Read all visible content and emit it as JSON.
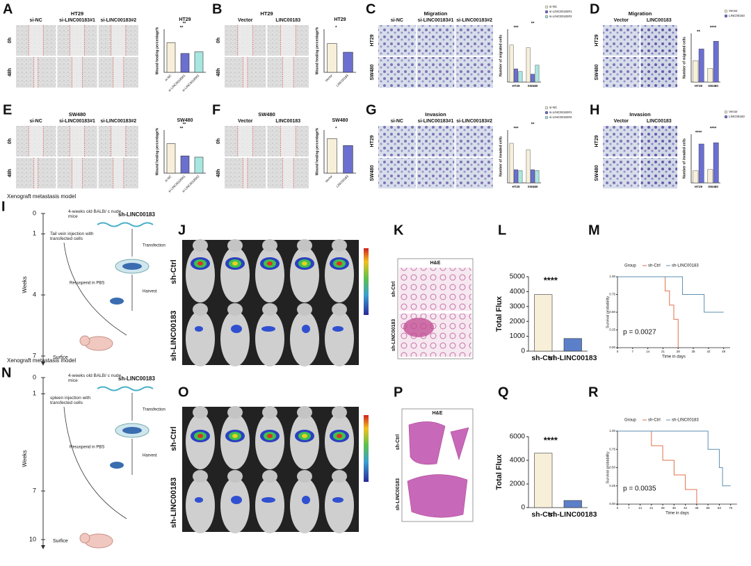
{
  "panel_letters": [
    "A",
    "B",
    "C",
    "D",
    "E",
    "F",
    "G",
    "H",
    "I",
    "J",
    "K",
    "L",
    "M",
    "N",
    "O",
    "P",
    "Q",
    "R"
  ],
  "image_panels": [
    {
      "title": "HT29",
      "columns": [
        "si-NC",
        "si-LINC00183#1",
        "si-LINC00183#2"
      ],
      "rows": [
        "0h",
        "48h"
      ]
    },
    {
      "title": "HT29",
      "columns": [
        "Vector",
        "LINC00183"
      ],
      "rows": [
        "0h",
        "48h"
      ]
    },
    {
      "title": "Migration",
      "columns": [
        "si-NC",
        "si-LINC00183#1",
        "si-LINC00183#2"
      ],
      "rows": [
        "HT29",
        "SW480"
      ]
    },
    {
      "title": "Migration",
      "columns": [
        "Vector",
        "LINC00183"
      ],
      "rows": [
        "HT29",
        "SW480"
      ]
    },
    {
      "title": "SW480",
      "columns": [
        "si-NC",
        "si-LINC00183#1",
        "si-LINC00183#2"
      ],
      "rows": [
        "0h",
        "48h"
      ]
    },
    {
      "title": "SW480",
      "columns": [
        "Vector",
        "LINC00183"
      ],
      "rows": [
        "0h",
        "48h"
      ]
    },
    {
      "title": "Invasion",
      "columns": [
        "si-NC",
        "si-LINC00183#1",
        "si-LINC00183#2"
      ],
      "rows": [
        "HT29",
        "SW480"
      ]
    },
    {
      "title": "Invasion",
      "columns": [
        "Vector",
        "LINC00183"
      ],
      "rows": [
        "HT29",
        "SW480"
      ]
    }
  ],
  "schemes": [
    {
      "title": "Xenograft metastasis model",
      "mice": "4-weeks old BALB/ c nude mice",
      "construct": "sh-LINC00183",
      "injection": "Tail vein injection with transfected cells",
      "transfection": "Transfection",
      "resuspend": "Resuspend in PBS",
      "harvest": "Harvest",
      "axis": "Weeks",
      "ticks": [
        0,
        1,
        4,
        7
      ],
      "end": "Surfice"
    },
    {
      "title": "Xenograft metastasis model",
      "mice": "4-weeks old BALB/ c nude mice",
      "construct": "sh-LINC00183",
      "injection": "spleen injection with transfected cells",
      "transfection": "Transfection",
      "resuspend": "Resuspend in PBS",
      "harvest": "Harvest",
      "axis": "Weeks",
      "ticks": [
        0,
        1,
        7,
        10
      ],
      "end": "Surfice"
    }
  ],
  "imaging_rows": [
    "sh-Ctrl",
    "sh-LINC00183"
  ],
  "histology": [
    {
      "title": "H&E",
      "rows": [
        "sh-Ctrl",
        "sh-LINC00183"
      ]
    },
    {
      "title": "H&E",
      "rows": [
        "sh-Ctrl",
        "sh-LINC00183"
      ]
    }
  ],
  "chart_data": [
    {
      "type": "bar",
      "title": "HT29",
      "ylabel": "Wound healing percentage%",
      "categories": [
        "si-NC",
        "si-LINC00183#1",
        "si-LINC00183#2"
      ],
      "values": [
        55,
        35,
        38
      ],
      "colors": [
        "#f7efd8",
        "#6b6fd0",
        "#a8e6e0"
      ],
      "ylim": [
        0,
        80
      ],
      "annotations": [
        "**",
        "**"
      ]
    },
    {
      "type": "bar",
      "title": "HT29",
      "ylabel": "Wound healing percentage%",
      "categories": [
        "Vector",
        "LINC00183"
      ],
      "values": [
        40,
        28
      ],
      "colors": [
        "#f7efd8",
        "#6b6fd0"
      ],
      "ylim": [
        0,
        60
      ],
      "annotations": [
        "*"
      ]
    },
    {
      "type": "bar",
      "ylabel": "Number of migrated cells",
      "categories": [
        "HT29",
        "SW480"
      ],
      "series": [
        {
          "name": "si-NC",
          "color": "#f7efd8",
          "values": [
            70,
            65
          ]
        },
        {
          "name": "si-LINC00183#1",
          "color": "#6b6fd0",
          "values": [
            25,
            15
          ]
        },
        {
          "name": "si-LINC00183#2",
          "color": "#a8e6e0",
          "values": [
            20,
            32
          ]
        }
      ],
      "ylim": [
        0,
        100
      ],
      "annotations": [
        "***",
        "**"
      ]
    },
    {
      "type": "bar",
      "ylabel": "Number of migrated cells",
      "categories": [
        "HT29",
        "SW480"
      ],
      "series": [
        {
          "name": "Vector",
          "color": "#f7efd8",
          "values": [
            110,
            70
          ]
        },
        {
          "name": "LINC00183",
          "color": "#6b6fd0",
          "values": [
            170,
            210
          ]
        }
      ],
      "ylim": [
        0,
        250
      ],
      "annotations": [
        "**",
        "****"
      ]
    },
    {
      "type": "bar",
      "title": "SW480",
      "ylabel": "Wound healing percentage%",
      "categories": [
        "si-NC",
        "si-LINC00183#1",
        "si-LINC00183#2"
      ],
      "values": [
        48,
        28,
        26
      ],
      "colors": [
        "#f7efd8",
        "#6b6fd0",
        "#a8e6e0"
      ],
      "ylim": [
        0,
        70
      ],
      "annotations": [
        "**",
        "**"
      ]
    },
    {
      "type": "bar",
      "title": "SW480",
      "ylabel": "Wound healing percentage%",
      "categories": [
        "Vector",
        "LINC00183"
      ],
      "values": [
        40,
        32
      ],
      "colors": [
        "#f7efd8",
        "#6b6fd0"
      ],
      "ylim": [
        0,
        50
      ],
      "annotations": [
        "*"
      ]
    },
    {
      "type": "bar",
      "ylabel": "Number of invaded cells",
      "categories": [
        "HT29",
        "SW480"
      ],
      "series": [
        {
          "name": "si-NC",
          "color": "#f7efd8",
          "values": [
            90,
            75
          ]
        },
        {
          "name": "si-LINC00183#1",
          "color": "#6b6fd0",
          "values": [
            30,
            30
          ]
        },
        {
          "name": "si-LINC00183#2",
          "color": "#a8e6e0",
          "values": [
            28,
            28
          ]
        }
      ],
      "ylim": [
        0,
        120
      ],
      "annotations": [
        "***",
        "**"
      ]
    },
    {
      "type": "bar",
      "ylabel": "Number of invaded cells",
      "categories": [
        "HT29",
        "SW480"
      ],
      "series": [
        {
          "name": "Vector",
          "color": "#f7efd8",
          "values": [
            50,
            55
          ]
        },
        {
          "name": "LINC00183",
          "color": "#6b6fd0",
          "values": [
            160,
            165
          ]
        }
      ],
      "ylim": [
        0,
        200
      ],
      "annotations": [
        "****",
        "****"
      ]
    },
    {
      "type": "bar",
      "ylabel": "Total Flux",
      "categories": [
        "sh-Ctrl",
        "sh-LINC00183"
      ],
      "values": [
        3800,
        850
      ],
      "colors": [
        "#f7efd8",
        "#5b7fc8"
      ],
      "ylim": [
        0,
        5000
      ],
      "yticks": [
        0,
        1000,
        2000,
        3000,
        4000,
        5000
      ],
      "annotations": [
        "****"
      ]
    },
    {
      "type": "line",
      "legend_title": "Group",
      "xlabel": "Time in days",
      "ylabel": "Survival probability",
      "annotations": [
        "p = 0.0027"
      ],
      "xlim": [
        0,
        52
      ],
      "ylim": [
        0,
        1
      ],
      "xticks": [
        0,
        7,
        14,
        21,
        28,
        35,
        42,
        49
      ],
      "yticks": [
        {
          "value": 0,
          "label": "0.00"
        },
        {
          "value": 0.25,
          "label": "0.25"
        },
        {
          "value": 0.5,
          "label": "0.50"
        },
        {
          "value": 0.75,
          "label": "0.75"
        },
        {
          "value": 1,
          "label": "1.00"
        }
      ],
      "series": [
        {
          "name": "sh-Ctrl",
          "color": "#e0704a",
          "x": [
            0,
            22,
            22,
            24,
            24,
            26,
            26,
            28,
            28
          ],
          "values": [
            1,
            1,
            0.8,
            0.8,
            0.6,
            0.6,
            0.4,
            0.4,
            0
          ]
        },
        {
          "name": "sh-LINC00183",
          "color": "#5b8fb0",
          "x": [
            0,
            30,
            30,
            40,
            40,
            49
          ],
          "values": [
            1,
            1,
            0.75,
            0.75,
            0.5,
            0.5
          ]
        }
      ]
    },
    {
      "type": "bar",
      "ylabel": "Total Flux",
      "categories": [
        "sh-Ctrl",
        "sh-LINC00183"
      ],
      "values": [
        4600,
        600
      ],
      "colors": [
        "#f7efd8",
        "#5b7fc8"
      ],
      "ylim": [
        0,
        6000
      ],
      "yticks": [
        0,
        2000,
        4000,
        6000
      ],
      "annotations": [
        "****"
      ]
    },
    {
      "type": "line",
      "legend_title": "Group",
      "xlabel": "Time in days",
      "ylabel": "Survival probability",
      "annotations": [
        "p = 0.0035"
      ],
      "xlim": [
        0,
        74
      ],
      "ylim": [
        0,
        1
      ],
      "xticks": [
        0,
        7,
        14,
        21,
        28,
        35,
        42,
        49,
        56,
        63,
        70
      ],
      "yticks": [
        {
          "value": 0,
          "label": "0.00"
        },
        {
          "value": 0.25,
          "label": "0.25"
        },
        {
          "value": 0.5,
          "label": "0.50"
        },
        {
          "value": 0.75,
          "label": "0.75"
        },
        {
          "value": 1,
          "label": "1.00"
        }
      ],
      "series": [
        {
          "name": "sh-Ctrl",
          "color": "#e0704a",
          "x": [
            0,
            21,
            21,
            28,
            28,
            35,
            35,
            42,
            42,
            49,
            49
          ],
          "values": [
            1,
            1,
            0.8,
            0.8,
            0.6,
            0.6,
            0.4,
            0.4,
            0.2,
            0.2,
            0
          ]
        },
        {
          "name": "sh-LINC00183",
          "color": "#5b8fb0",
          "x": [
            0,
            56,
            56,
            63,
            63,
            65,
            65,
            70
          ],
          "values": [
            1,
            1,
            0.75,
            0.75,
            0.5,
            0.5,
            0.25,
            0.25
          ]
        }
      ]
    }
  ]
}
